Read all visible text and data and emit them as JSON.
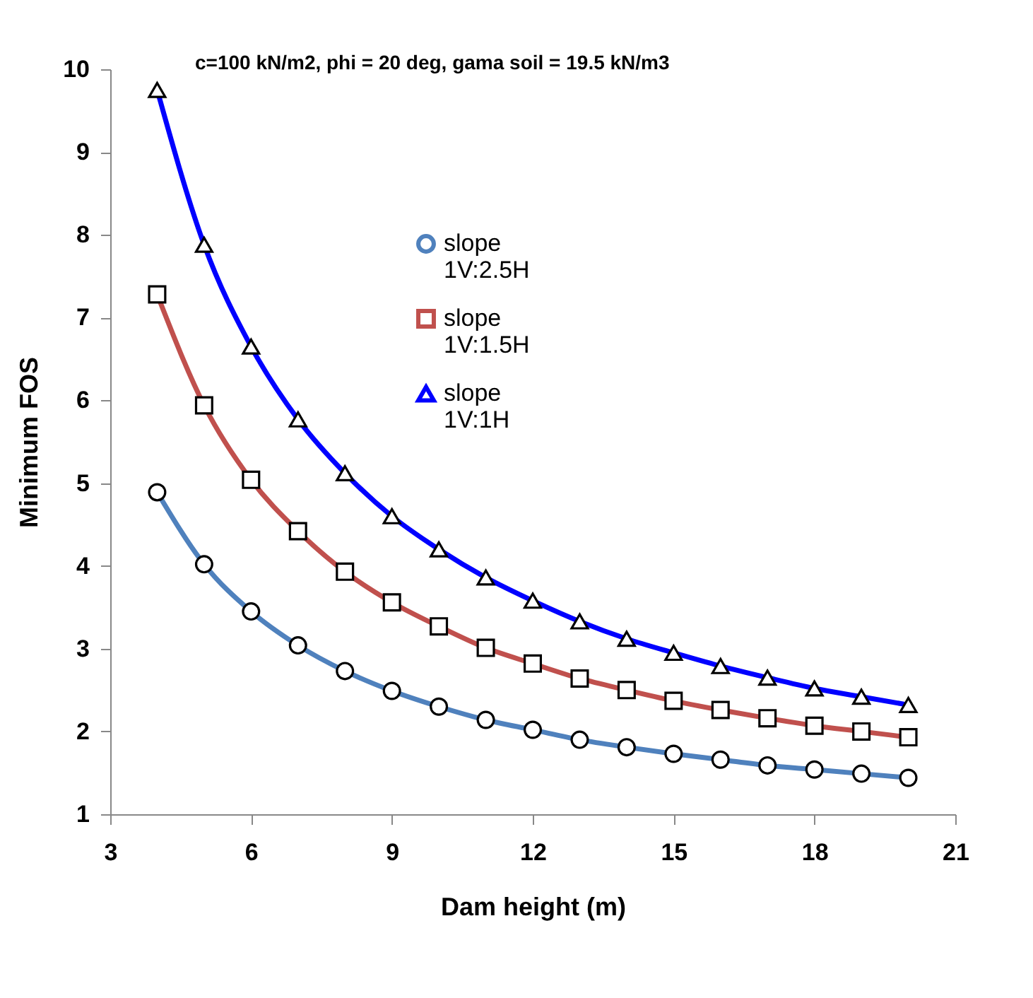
{
  "chart_data": {
    "type": "line",
    "xlabel": "Dam height (m)",
    "ylabel": "Minimum FOS",
    "annotations": [
      "c=100 kN/m2, phi = 20 deg, gama soil = 19.5 kN/m3"
    ],
    "x": [
      4,
      5,
      6,
      7,
      8,
      9,
      10,
      11,
      12,
      13,
      14,
      15,
      16,
      17,
      18,
      19,
      20
    ],
    "series": [
      {
        "name": "slope 1V:2.5H",
        "color": "#4f81bd",
        "marker": "circle",
        "values": [
          4.89,
          4.02,
          3.45,
          3.04,
          2.73,
          2.49,
          2.3,
          2.14,
          2.02,
          1.9,
          1.81,
          1.73,
          1.66,
          1.59,
          1.54,
          1.49,
          1.44
        ]
      },
      {
        "name": "slope 1V:1.5H",
        "color": "#c0504d",
        "marker": "square",
        "values": [
          7.28,
          5.94,
          5.04,
          4.42,
          3.93,
          3.56,
          3.27,
          3.01,
          2.82,
          2.64,
          2.5,
          2.37,
          2.26,
          2.16,
          2.07,
          2.0,
          1.93
        ]
      },
      {
        "name": "slope 1V:1H",
        "color": "#0000ff",
        "marker": "triangle",
        "values": [
          9.75,
          7.88,
          6.65,
          5.77,
          5.12,
          4.6,
          4.2,
          3.86,
          3.58,
          3.33,
          3.12,
          2.95,
          2.79,
          2.65,
          2.52,
          2.42,
          2.32
        ]
      }
    ],
    "xlim": [
      3,
      21
    ],
    "xticks": [
      3,
      6,
      9,
      12,
      15,
      18,
      21
    ],
    "ylim": [
      1,
      10
    ],
    "yticks": [
      1,
      2,
      3,
      4,
      5,
      6,
      7,
      8,
      9,
      10
    ],
    "grid": false,
    "legend": "top",
    "line_style": "solid"
  }
}
